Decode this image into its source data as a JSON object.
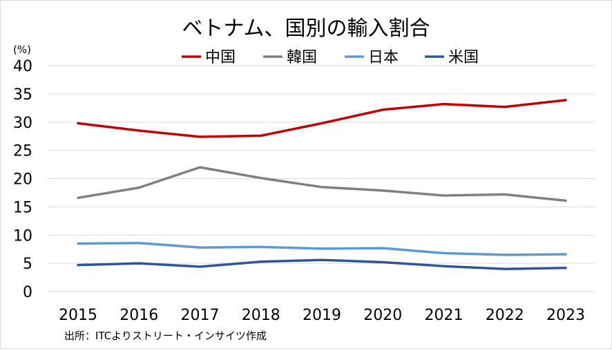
{
  "chart_data": {
    "type": "line",
    "title": "ベトナム、国別の輸入割合",
    "ylabel": "(%)",
    "xlabel": "",
    "categories": [
      "2015",
      "2016",
      "2017",
      "2018",
      "2019",
      "2020",
      "2021",
      "2022",
      "2023"
    ],
    "yticks": [
      "0",
      "5",
      "10",
      "15",
      "20",
      "25",
      "30",
      "35",
      "40"
    ],
    "ylim": [
      0,
      40
    ],
    "grid": true,
    "legend_position": "top",
    "series": [
      {
        "name": "中国",
        "color": "#c00000",
        "values": [
          29.8,
          28.5,
          27.4,
          27.6,
          29.8,
          32.2,
          33.2,
          32.7,
          33.9
        ]
      },
      {
        "name": "韓国",
        "color": "#808080",
        "values": [
          16.6,
          18.4,
          22.0,
          20.1,
          18.5,
          17.9,
          17.0,
          17.2,
          16.1
        ]
      },
      {
        "name": "日本",
        "color": "#5b9bd5",
        "values": [
          8.5,
          8.6,
          7.8,
          7.9,
          7.6,
          7.7,
          6.8,
          6.5,
          6.6
        ]
      },
      {
        "name": "米国",
        "color": "#2f5597",
        "values": [
          4.7,
          5.0,
          4.4,
          5.3,
          5.6,
          5.2,
          4.5,
          4.0,
          4.2
        ]
      }
    ],
    "source": "出所：ITCよりストリート・インサイツ作成"
  }
}
